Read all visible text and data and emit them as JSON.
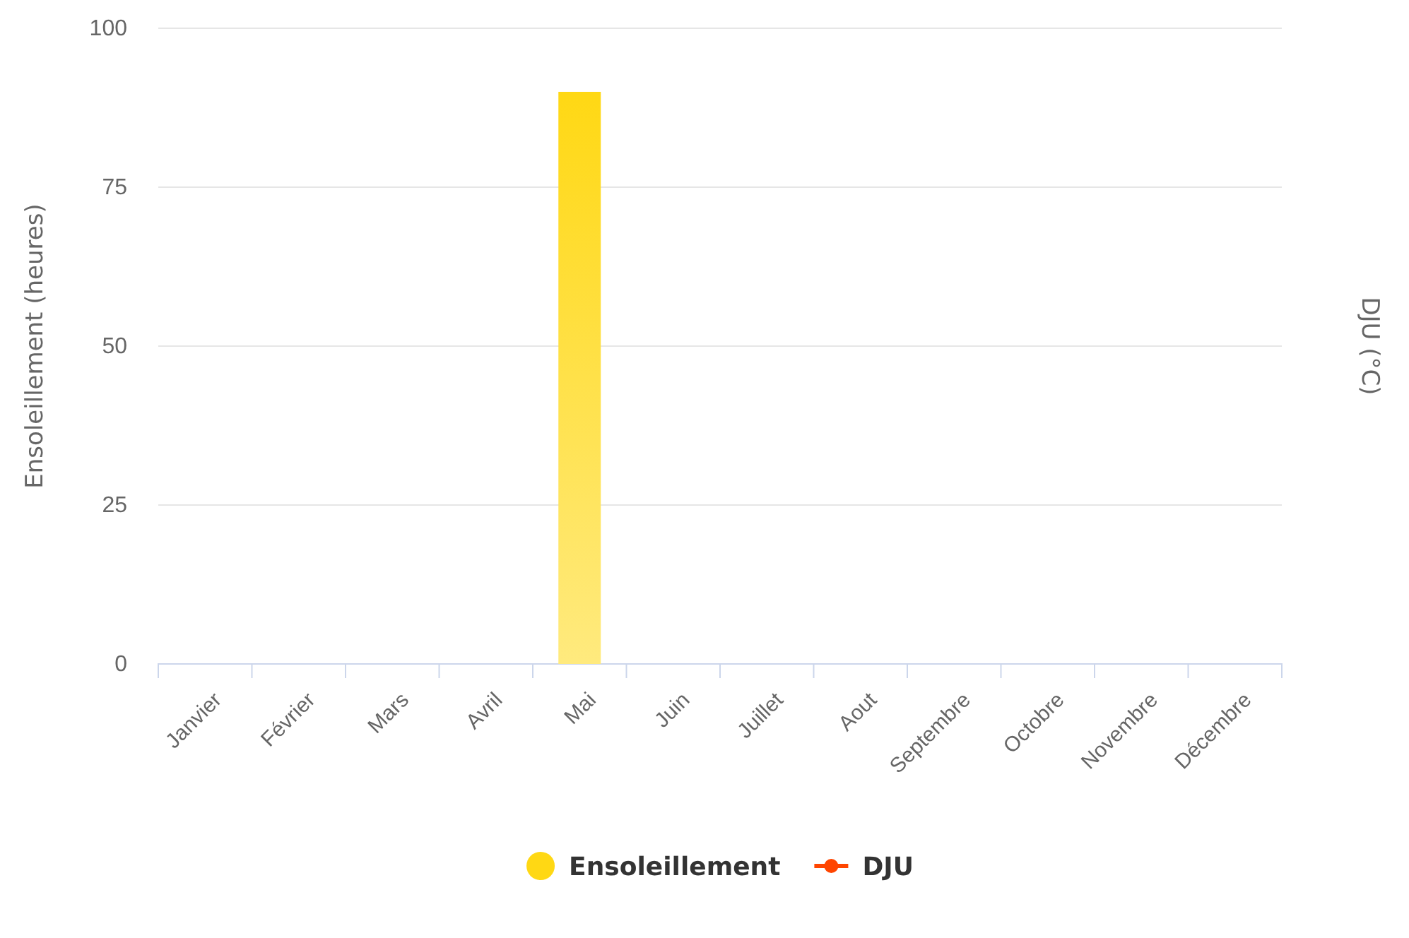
{
  "chart_data": {
    "type": "bar",
    "ylabel": "Ensoleillement (heures)",
    "y2label": "DJU (°C)",
    "categories": [
      "Janvier",
      "Février",
      "Mars",
      "Avril",
      "Mai",
      "Juin",
      "Juillet",
      "Aout",
      "Septembre",
      "Octobre",
      "Novembre",
      "Décembre"
    ],
    "series": [
      {
        "name": "Ensoleillement",
        "color": "#ffd814",
        "values": [
          null,
          null,
          null,
          null,
          90,
          null,
          null,
          null,
          null,
          null,
          null,
          null
        ]
      },
      {
        "name": "DJU",
        "type": "line",
        "color": "#ff4500",
        "marker": "circle",
        "values": [
          null,
          null,
          null,
          null,
          null,
          null,
          null,
          null,
          null,
          null,
          null,
          null
        ]
      }
    ],
    "ylim": [
      0,
      100
    ],
    "yticks": [
      0,
      25,
      50,
      75,
      100
    ],
    "grid": "y",
    "legend": "bottom"
  }
}
